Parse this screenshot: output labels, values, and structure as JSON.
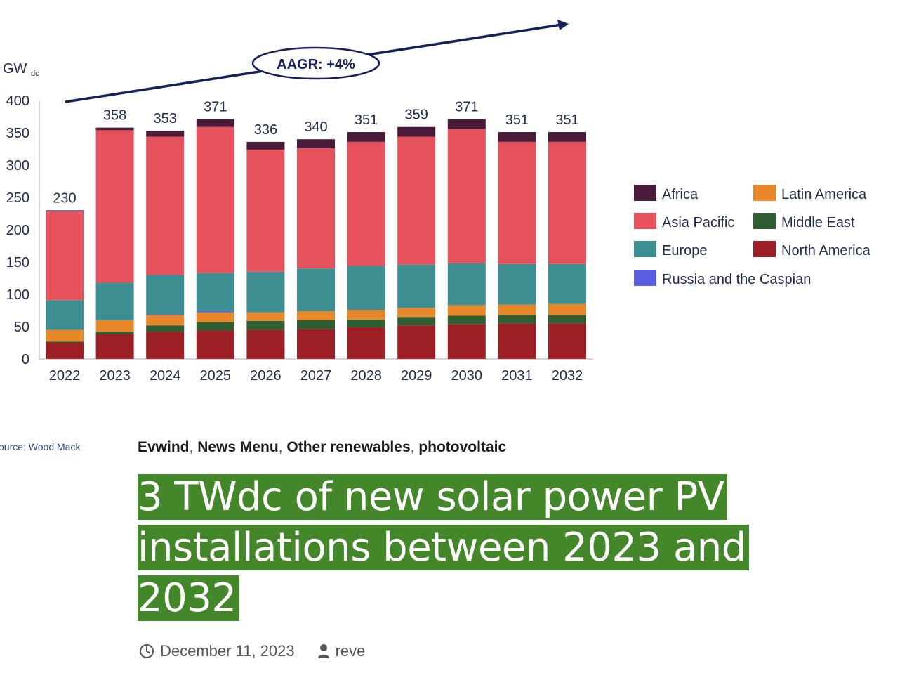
{
  "chart_data": {
    "type": "bar",
    "stacked": true,
    "ylabel": "GW",
    "ylabel_sub": "dc",
    "ylim": [
      0,
      400
    ],
    "yticks": [
      0,
      50,
      100,
      150,
      200,
      250,
      300,
      350,
      400
    ],
    "categories": [
      "2022",
      "2023",
      "2024",
      "2025",
      "2026",
      "2027",
      "2028",
      "2029",
      "2030",
      "2031",
      "2032"
    ],
    "totals": [
      230,
      358,
      353,
      371,
      336,
      340,
      351,
      359,
      371,
      351,
      351
    ],
    "series": [
      {
        "name": "North America",
        "color": "#9b1f25",
        "values": [
          25,
          38,
          42,
          44,
          45,
          46,
          49,
          52,
          54,
          55,
          55
        ]
      },
      {
        "name": "Middle East",
        "color": "#2f5e32",
        "values": [
          2,
          4,
          10,
          13,
          14,
          14,
          12,
          13,
          13,
          13,
          13
        ]
      },
      {
        "name": "Latin America",
        "color": "#e8862a",
        "values": [
          18,
          18,
          16,
          15,
          13,
          14,
          15,
          14,
          16,
          16,
          17
        ]
      },
      {
        "name": "Russia and the Caspian",
        "color": "#5b5ce0",
        "values": [
          0,
          0,
          1,
          2,
          0,
          0,
          0,
          0,
          0,
          0,
          0
        ]
      },
      {
        "name": "Europe",
        "color": "#3d8e90",
        "values": [
          46,
          58,
          61,
          59,
          63,
          66,
          68,
          67,
          65,
          63,
          62
        ]
      },
      {
        "name": "Asia Pacific",
        "color": "#e6525b",
        "values": [
          137,
          236,
          214,
          226,
          189,
          186,
          192,
          198,
          208,
          189,
          189
        ]
      },
      {
        "name": "Africa",
        "color": "#4a1a3a",
        "values": [
          2,
          4,
          9,
          12,
          12,
          14,
          15,
          15,
          15,
          15,
          15
        ]
      }
    ],
    "legend": {
      "position": "right",
      "order": [
        "Africa",
        "Latin America",
        "Asia Pacific",
        "Middle East",
        "Europe",
        "North America",
        "Russia and the Caspian"
      ]
    },
    "annotation": {
      "text": "AAGR: +4%",
      "arrow": "trend arrow rising left to right over bars"
    }
  },
  "source_label": "ource: Wood Mack",
  "post": {
    "categories": [
      "Evwind",
      "News Menu",
      "Other renewables",
      "photovoltaic"
    ],
    "title": "3 TWdc of new solar power PV installations between 2023 and 2032",
    "date": "December 11, 2023",
    "author": "reve"
  },
  "colors": {
    "title_highlight": "#44862a",
    "title_text": "#ffffff"
  },
  "icons": {
    "date": "clock-icon",
    "author": "user-icon"
  }
}
